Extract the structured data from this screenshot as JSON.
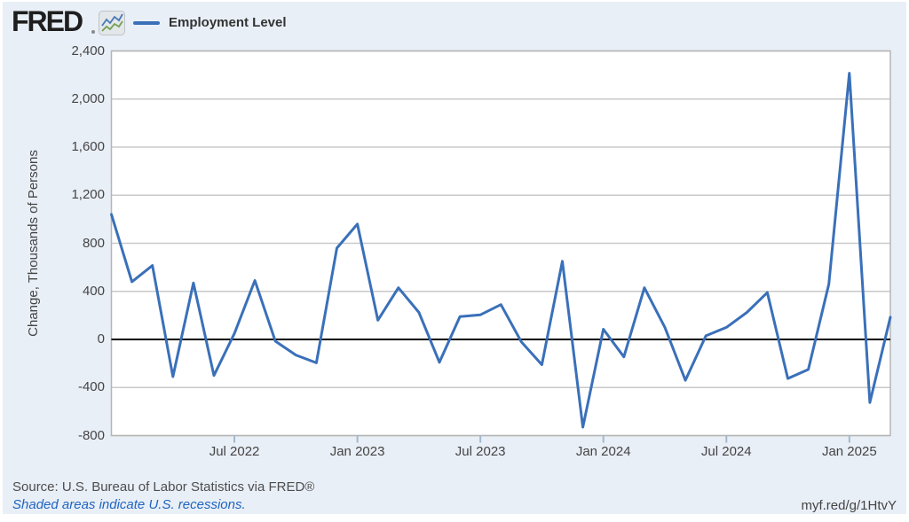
{
  "header": {
    "logo_text": "FRED",
    "sparkline_icon": "fred-graph-icon",
    "legend": {
      "label": "Employment Level",
      "color": "#3a70b9"
    }
  },
  "footer": {
    "source": "Source: U.S. Bureau of Labor Statistics via FRED®",
    "note": "Shaded areas indicate U.S. recessions.",
    "shortlink": "myf.red/g/1HtvY"
  },
  "colors": {
    "panel_background": "#e9eff7",
    "plot_background": "#ffffff",
    "gridline": "#c9c9c9",
    "plot_border": "#b5b5b5",
    "zero_line": "#000000",
    "series_line": "#3a70b9",
    "axis_text": "#444444",
    "note_blue": "#2064c0"
  },
  "chart_data": {
    "type": "line",
    "title": "Employment Level",
    "ylabel": "Change, Thousands of Persons",
    "frequency": "Monthly",
    "ylim": [
      -800,
      2400
    ],
    "grid": "horizontal",
    "zero_line": true,
    "legend_position": "top-left",
    "y_ticks": [
      2400,
      2000,
      1600,
      1200,
      800,
      400,
      0,
      -400,
      -800
    ],
    "x_ticks": [
      {
        "index": 6,
        "label": "Jul 2022"
      },
      {
        "index": 12,
        "label": "Jan 2023"
      },
      {
        "index": 18,
        "label": "Jul 2023"
      },
      {
        "index": 24,
        "label": "Jan 2024"
      },
      {
        "index": 30,
        "label": "Jul 2024"
      },
      {
        "index": 36,
        "label": "Jan 2025"
      }
    ],
    "x": [
      "Jan 2022",
      "Feb 2022",
      "Mar 2022",
      "Apr 2022",
      "May 2022",
      "Jun 2022",
      "Jul 2022",
      "Aug 2022",
      "Sep 2022",
      "Oct 2022",
      "Nov 2022",
      "Dec 2022",
      "Jan 2023",
      "Feb 2023",
      "Mar 2023",
      "Apr 2023",
      "May 2023",
      "Jun 2023",
      "Jul 2023",
      "Aug 2023",
      "Sep 2023",
      "Oct 2023",
      "Nov 2023",
      "Dec 2023",
      "Jan 2024",
      "Feb 2024",
      "Mar 2024",
      "Apr 2024",
      "May 2024",
      "Jun 2024",
      "Jul 2024",
      "Aug 2024",
      "Sep 2024",
      "Oct 2024",
      "Nov 2024",
      "Dec 2024",
      "Jan 2025",
      "Feb 2025",
      "Mar 2025"
    ],
    "values": [
      1040,
      480,
      615,
      -310,
      470,
      -300,
      50,
      490,
      -15,
      -130,
      -195,
      760,
      960,
      160,
      430,
      225,
      -190,
      190,
      205,
      290,
      -20,
      -210,
      650,
      -730,
      85,
      -145,
      430,
      100,
      -340,
      30,
      100,
      225,
      390,
      -325,
      -250,
      460,
      2215,
      -525,
      185
    ]
  }
}
